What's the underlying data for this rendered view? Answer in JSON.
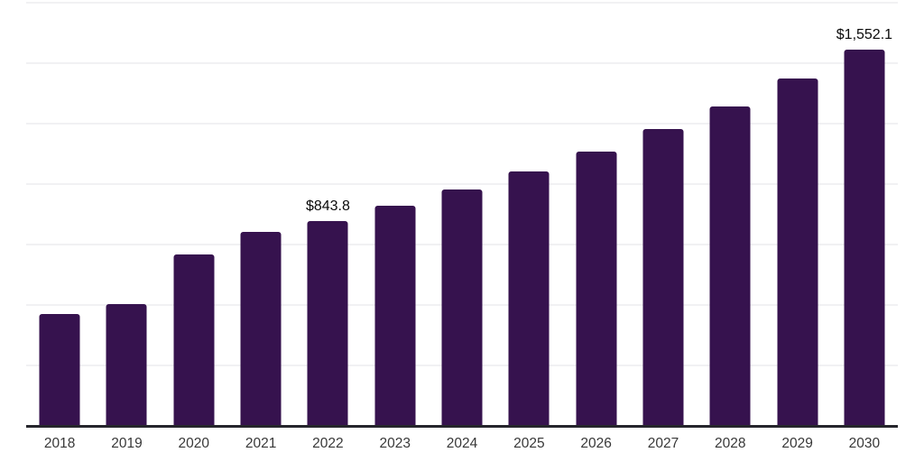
{
  "chart_data": {
    "type": "bar",
    "title": "",
    "xlabel": "",
    "ylabel": "",
    "categories": [
      "2018",
      "2019",
      "2020",
      "2021",
      "2022",
      "2023",
      "2024",
      "2025",
      "2026",
      "2027",
      "2028",
      "2029",
      "2030"
    ],
    "values": [
      460,
      500,
      705,
      798,
      843.8,
      907,
      974.5,
      1049,
      1131,
      1223,
      1317,
      1434,
      1552.1
    ],
    "point_labels": [
      "",
      "",
      "",
      "",
      "$843.8",
      "",
      "",
      "",
      "",
      "",
      "",
      "",
      "$1,552.1"
    ],
    "ylim": [
      0,
      1750
    ],
    "grid": {
      "axis": "y",
      "interval": 250,
      "visible": true
    },
    "legend": "none",
    "colors": {
      "bar": "#36124E",
      "axis_line": "#26262C",
      "gridline": "#F1F1F3",
      "tick_label": "#383838",
      "data_label": "#0A0A0A",
      "background": "#FFFFFF"
    }
  }
}
